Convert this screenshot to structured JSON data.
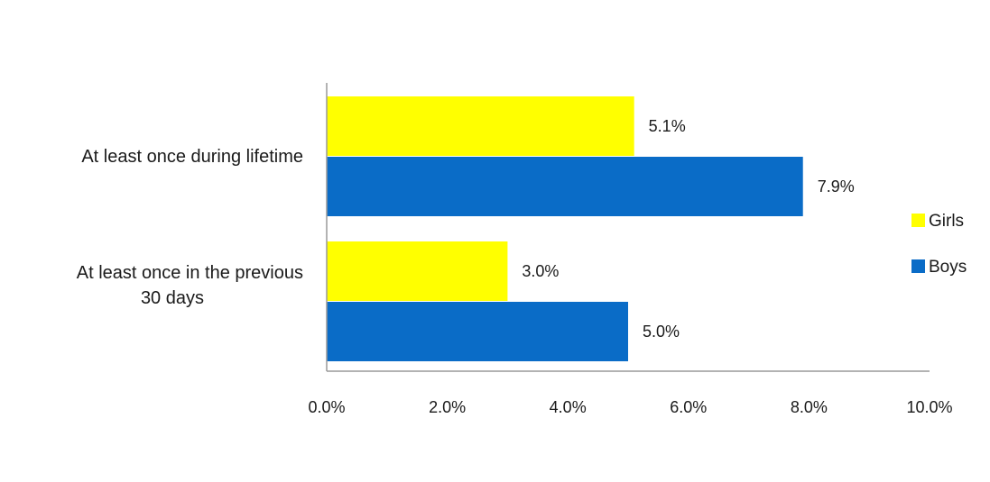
{
  "chart_data": {
    "type": "bar",
    "orientation": "horizontal",
    "categories": [
      [
        "At least once during lifetime"
      ],
      [
        "At least once in the previous",
        "30 days"
      ]
    ],
    "series": [
      {
        "name": "Girls",
        "color": "#ffff00",
        "values": [
          5.1,
          3.0
        ],
        "labels": [
          "5.1%",
          "3.0%"
        ]
      },
      {
        "name": "Boys",
        "color": "#0a6cc7",
        "values": [
          7.9,
          5.0
        ],
        "labels": [
          "7.9%",
          "5.0%"
        ]
      }
    ],
    "xlim": [
      0,
      10
    ],
    "xticks": [
      {
        "value": 0,
        "label": "0.0%"
      },
      {
        "value": 2,
        "label": "2.0%"
      },
      {
        "value": 4,
        "label": "4.0%"
      },
      {
        "value": 6,
        "label": "6.0%"
      },
      {
        "value": 8,
        "label": "8.0%"
      },
      {
        "value": 10,
        "label": "10.0%"
      }
    ],
    "title": "",
    "xlabel": "",
    "ylabel": "",
    "grid": false,
    "legend_position": "right"
  }
}
